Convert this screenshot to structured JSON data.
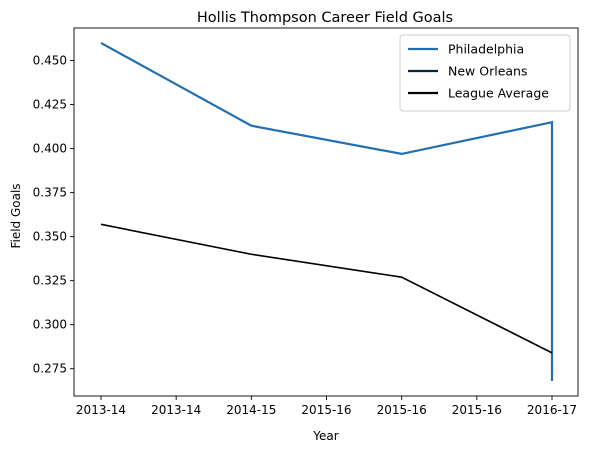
{
  "chart_data": {
    "type": "line",
    "title": "Hollis Thompson Career Field Goals",
    "xlabel": "Year",
    "ylabel": "Field Goals",
    "x_tick_labels": [
      "2013-14",
      "2013-14",
      "2014-15",
      "2015-16",
      "2015-16",
      "2015-16",
      "2016-17"
    ],
    "ylim": [
      0.2595,
      0.4685
    ],
    "y_ticks": [
      0.275,
      0.3,
      0.325,
      0.35,
      0.375,
      0.4,
      0.425,
      0.45
    ],
    "grid": false,
    "legend_position": "top-right",
    "series": [
      {
        "name": "Philadelphia",
        "color": "#1f6fb2",
        "points": [
          {
            "x": 0,
            "y": 0.46
          },
          {
            "x": 2,
            "y": 0.413
          },
          {
            "x": 4,
            "y": 0.397
          },
          {
            "x": 6,
            "y": 0.415
          },
          {
            "x": 6,
            "y": 0.268
          }
        ]
      },
      {
        "name": "New Orleans",
        "color": "#0c2340",
        "points": []
      },
      {
        "name": "League Average",
        "color": "#000000",
        "points": [
          {
            "x": 0,
            "y": 0.357
          },
          {
            "x": 2,
            "y": 0.34
          },
          {
            "x": 4,
            "y": 0.327
          },
          {
            "x": 6,
            "y": 0.284
          }
        ]
      }
    ]
  }
}
